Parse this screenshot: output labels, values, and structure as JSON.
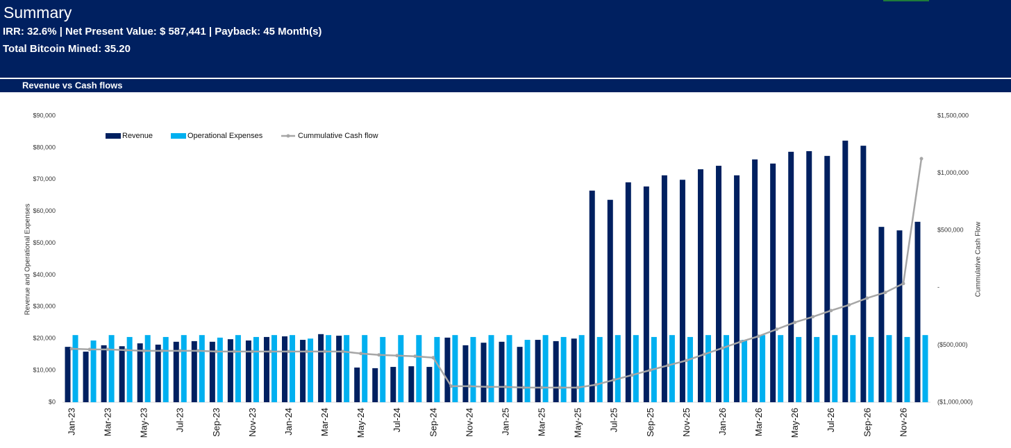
{
  "header": {
    "title": "Summary",
    "metrics": "IRR: 32.6% | Net Present Value: $ 587,441 | Payback: 45 Month(s)",
    "bitcoin": "Total Bitcoin Mined: 35.20"
  },
  "section": "Revenue vs Cash flows",
  "chart_data": {
    "type": "bar",
    "ylabel": "Revenue and Operational Expenses",
    "y2label": "Cummulative Cash Flow",
    "legend": "upper left",
    "grid": false,
    "categories": [
      "Jan-23",
      null,
      "Mar-23",
      null,
      "May-23",
      null,
      "Jul-23",
      null,
      "Sep-23",
      null,
      "Nov-23",
      null,
      "Jan-24",
      null,
      "Mar-24",
      null,
      "May-24",
      null,
      "Jul-24",
      null,
      "Sep-24",
      null,
      "Nov-24",
      null,
      "Jan-25",
      null,
      "Mar-25",
      null,
      "May-25",
      null,
      "Jul-25",
      null,
      "Sep-25",
      null,
      "Nov-25",
      null,
      "Jan-26",
      null,
      "Mar-26",
      null,
      "May-26",
      null,
      "Jul-26",
      null,
      "Sep-26",
      null,
      "Nov-26",
      null
    ],
    "series": [
      {
        "name": "Revenue",
        "color": "#002060",
        "values": [
          17400,
          15900,
          17900,
          17600,
          18500,
          18100,
          19000,
          19200,
          19000,
          19800,
          19400,
          20500,
          20700,
          19600,
          21400,
          20900,
          10900,
          10700,
          11100,
          11300,
          11100,
          20300,
          17900,
          18700,
          19000,
          17400,
          19600,
          19200,
          20000,
          66500,
          63600,
          69100,
          67800,
          71300,
          69900,
          73200,
          74300,
          71300,
          76300,
          75000,
          78700,
          78900,
          77400,
          82200,
          80600,
          55100,
          54000,
          56700
        ]
      },
      {
        "name": "Operational Expenses",
        "color": "#00b0f0",
        "values": [
          21100,
          19400,
          21100,
          20500,
          21100,
          20500,
          21100,
          21100,
          20300,
          21100,
          20500,
          21100,
          21100,
          20000,
          21100,
          21100,
          21100,
          20500,
          21100,
          21100,
          20500,
          21100,
          20500,
          21100,
          21100,
          19600,
          21100,
          20500,
          21100,
          20500,
          21100,
          21100,
          20500,
          21100,
          20500,
          21100,
          21100,
          19600,
          21100,
          21100,
          20500,
          20500,
          21100,
          21100,
          20500,
          21100,
          20500,
          21100
        ]
      },
      {
        "name": "Cummulative Cash flow",
        "color": "#a6a6a6",
        "type": "line",
        "axis": "y2",
        "values": [
          -533000,
          -539000,
          -539000,
          -545000,
          -551000,
          -551000,
          -551000,
          -551000,
          -557000,
          -557000,
          -557000,
          -557000,
          -557000,
          -557000,
          -557000,
          -557000,
          -575000,
          -587000,
          -593000,
          -599000,
          -611000,
          -860000,
          -860000,
          -866000,
          -866000,
          -872000,
          -872000,
          -872000,
          -872000,
          -847000,
          -805000,
          -763000,
          -720000,
          -678000,
          -636000,
          -581000,
          -527000,
          -472000,
          -424000,
          -363000,
          -303000,
          -254000,
          -200000,
          -151000,
          -91000,
          -42000,
          36000,
          1126000
        ]
      }
    ],
    "ylim": [
      0,
      90000
    ],
    "yticks": [
      {
        "value": 0,
        "label": "$0"
      },
      {
        "value": 10000,
        "label": "$10,000"
      },
      {
        "value": 20000,
        "label": "$20,000"
      },
      {
        "value": 30000,
        "label": "$30,000"
      },
      {
        "value": 40000,
        "label": "$40,000"
      },
      {
        "value": 50000,
        "label": "$50,000"
      },
      {
        "value": 60000,
        "label": "$60,000"
      },
      {
        "value": 70000,
        "label": "$70,000"
      },
      {
        "value": 80000,
        "label": "$80,000"
      },
      {
        "value": 90000,
        "label": "$90,000"
      }
    ],
    "y2lim": [
      -1000000,
      1500000
    ],
    "y2ticks": [
      {
        "value": -1000000,
        "label": "($1,000,000)"
      },
      {
        "value": -500000,
        "label": "($500,000)"
      },
      {
        "value": 0,
        "label": "-"
      },
      {
        "value": 500000,
        "label": "$500,000"
      },
      {
        "value": 1000000,
        "label": "$1,000,000"
      },
      {
        "value": 1500000,
        "label": "$1,500,000"
      }
    ]
  }
}
